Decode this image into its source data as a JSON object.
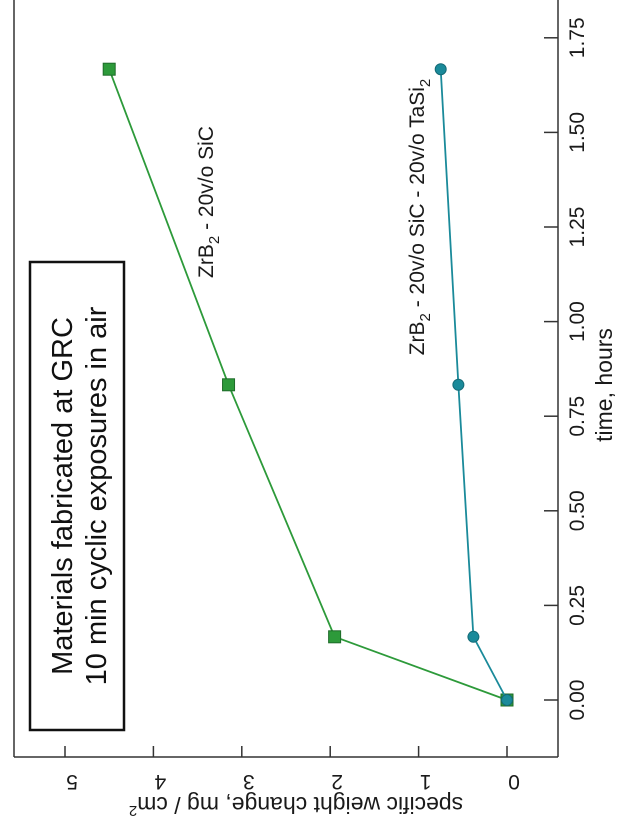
{
  "chart_data": {
    "type": "line",
    "x_label": "time, hours",
    "y_label_main": "specific weight change, mg / cm",
    "y_label_exp": "2",
    "x_ticks": [
      "0.00",
      "0.25",
      "0.50",
      "0.75",
      "1.00",
      "1.25",
      "1.50",
      "1.75"
    ],
    "x_tick_values": [
      0,
      0.25,
      0.5,
      0.75,
      1.0,
      1.25,
      1.5,
      1.75
    ],
    "y_ticks": [
      "0",
      "1",
      "2",
      "3",
      "4",
      "5"
    ],
    "y_tick_values": [
      0,
      1,
      2,
      3,
      4,
      5
    ],
    "xlim": [
      -0.167,
      1.85
    ],
    "ylim": [
      -0.1,
      5.5
    ],
    "orientation": "rotated 90 degrees clockwise",
    "legend_box": {
      "line1": "Materials fabricated at GRC",
      "line2": "10 min cyclic exposures in air"
    },
    "series": [
      {
        "label_parts": [
          "ZrB",
          "2",
          " - 20v/o SiC"
        ],
        "color": "#2d9a3a",
        "marker": "square",
        "x": [
          0,
          0.167,
          0.833,
          1.667
        ],
        "y": [
          0,
          1.95,
          3.15,
          4.5
        ]
      },
      {
        "label_parts": [
          "ZrB",
          "2",
          " - 20v/o SiC - 20v/o TaSi",
          "2"
        ],
        "color": "#1a8a9a",
        "marker": "circle",
        "x": [
          0,
          0.167,
          0.833,
          1.667
        ],
        "y": [
          0,
          0.38,
          0.55,
          0.75
        ]
      }
    ]
  }
}
